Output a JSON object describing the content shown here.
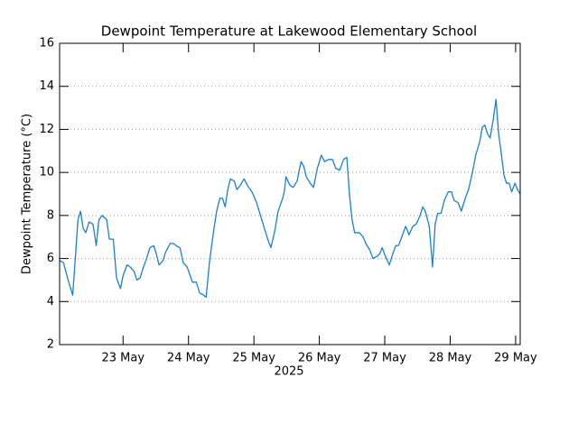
{
  "chart_data": {
    "type": "line",
    "title": "Dewpoint Temperature at Lakewood Elementary School",
    "ylabel": "Dewpoint Temperature (°C)",
    "xlabel": "2025",
    "xlim": [
      22.03,
      29.07
    ],
    "xticks": [
      {
        "value": 23,
        "label": "23 May"
      },
      {
        "value": 24,
        "label": "24 May"
      },
      {
        "value": 25,
        "label": "25 May"
      },
      {
        "value": 26,
        "label": "26 May"
      },
      {
        "value": 27,
        "label": "27 May"
      },
      {
        "value": 28,
        "label": "28 May"
      },
      {
        "value": 29,
        "label": "29 May"
      }
    ],
    "ylim": [
      2,
      16
    ],
    "yticks": [
      2,
      4,
      6,
      8,
      10,
      12,
      14,
      16
    ],
    "grid": true,
    "color": "#1a7fd6",
    "x": [
      22.03,
      22.09,
      22.16,
      22.23,
      22.27,
      22.31,
      22.35,
      22.39,
      22.43,
      22.48,
      22.54,
      22.59,
      22.63,
      22.68,
      22.75,
      22.79,
      22.85,
      22.9,
      22.96,
      23.0,
      23.06,
      23.11,
      23.17,
      23.21,
      23.26,
      23.3,
      23.36,
      23.41,
      23.47,
      23.51,
      23.55,
      23.61,
      23.65,
      23.72,
      23.77,
      23.81,
      23.87,
      23.92,
      23.98,
      24.06,
      24.12,
      24.17,
      24.23,
      24.27,
      24.32,
      24.38,
      24.43,
      24.48,
      24.52,
      24.56,
      24.6,
      24.64,
      24.7,
      24.74,
      24.79,
      24.85,
      24.9,
      24.97,
      25.04,
      25.1,
      25.16,
      25.21,
      25.26,
      25.32,
      25.37,
      25.44,
      25.47,
      25.49,
      25.55,
      25.6,
      25.66,
      25.72,
      25.76,
      25.8,
      25.86,
      25.91,
      25.97,
      26.03,
      26.08,
      26.14,
      26.2,
      26.25,
      26.31,
      26.37,
      26.42,
      26.46,
      26.5,
      26.54,
      26.61,
      26.67,
      26.71,
      26.77,
      26.82,
      26.88,
      26.92,
      26.96,
      27.01,
      27.07,
      27.12,
      27.17,
      27.21,
      27.26,
      27.32,
      27.37,
      27.43,
      27.48,
      27.54,
      27.58,
      27.62,
      27.68,
      27.73,
      27.77,
      27.81,
      27.86,
      27.91,
      27.97,
      28.02,
      28.06,
      28.12,
      28.17,
      28.23,
      28.28,
      28.34,
      28.39,
      28.45,
      28.49,
      28.53,
      28.57,
      28.61,
      28.66,
      28.7,
      28.74,
      28.78,
      28.82,
      28.86,
      28.9,
      28.94,
      28.99,
      29.03,
      29.07
    ],
    "values": [
      5.9,
      5.8,
      5.0,
      4.3,
      6.0,
      7.8,
      8.2,
      7.4,
      7.2,
      7.7,
      7.6,
      6.6,
      7.8,
      8.0,
      7.8,
      6.9,
      6.9,
      5.1,
      4.6,
      5.2,
      5.7,
      5.6,
      5.4,
      5.0,
      5.1,
      5.5,
      6.0,
      6.5,
      6.6,
      6.2,
      5.7,
      5.9,
      6.3,
      6.7,
      6.7,
      6.6,
      6.5,
      5.8,
      5.6,
      4.9,
      4.9,
      4.4,
      4.3,
      4.2,
      5.8,
      7.2,
      8.2,
      8.8,
      8.8,
      8.4,
      9.2,
      9.7,
      9.6,
      9.2,
      9.4,
      9.7,
      9.4,
      9.1,
      8.6,
      8.0,
      7.4,
      6.9,
      6.5,
      7.3,
      8.2,
      8.8,
      9.2,
      9.8,
      9.4,
      9.3,
      9.6,
      10.5,
      10.3,
      9.8,
      9.5,
      9.3,
      10.2,
      10.8,
      10.5,
      10.6,
      10.6,
      10.2,
      10.1,
      10.6,
      10.7,
      9.0,
      7.8,
      7.2,
      7.2,
      7.0,
      6.7,
      6.4,
      6.0,
      6.1,
      6.2,
      6.5,
      6.1,
      5.7,
      6.2,
      6.6,
      6.6,
      7.0,
      7.5,
      7.1,
      7.5,
      7.6,
      8.0,
      8.4,
      8.2,
      7.5,
      5.6,
      7.6,
      8.1,
      8.1,
      8.7,
      9.1,
      9.1,
      8.7,
      8.6,
      8.2,
      8.8,
      9.2,
      10.0,
      10.8,
      11.4,
      12.1,
      12.2,
      11.8,
      11.6,
      12.5,
      13.4,
      11.8,
      10.9,
      9.9,
      9.5,
      9.5,
      9.1,
      9.5,
      9.2,
      9.0
    ]
  }
}
